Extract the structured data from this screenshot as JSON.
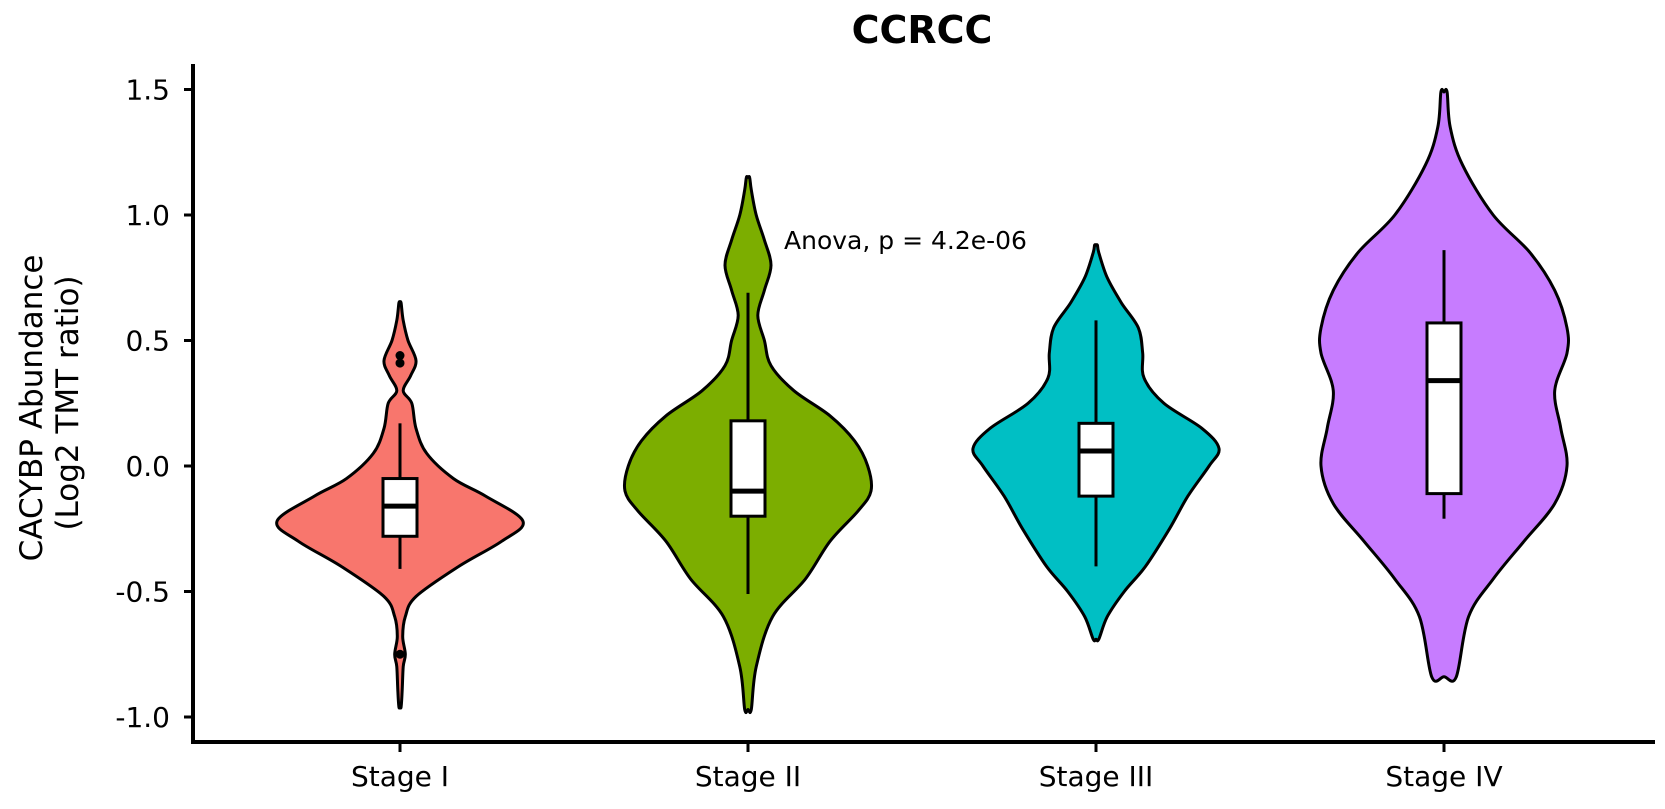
{
  "chart_data": {
    "type": "violin",
    "title": "CCRCC",
    "xlabel": "",
    "ylabel_lines": [
      "CACYBP Abundance",
      "(Log2 TMT ratio)"
    ],
    "ylim": [
      -1.1,
      1.6
    ],
    "yticks": [
      1.5,
      1.0,
      0.5,
      0.0,
      -0.5,
      -1.0
    ],
    "ytick_labels": [
      "1.5",
      "1.0",
      "0.5",
      "0.0",
      "-0.5",
      "-1.0"
    ],
    "annotation": "Anova, p = 4.2e-06",
    "grid": false,
    "legend": "none",
    "groups": [
      {
        "label": "Stage I",
        "color": "#F8766D",
        "box": {
          "q1": -0.28,
          "median": -0.16,
          "q3": -0.05,
          "whisker_low": -0.41,
          "whisker_high": 0.17
        },
        "outliers": [
          0.44,
          0.41,
          -0.75
        ],
        "density": [
          [
            -0.96,
            0.02
          ],
          [
            -0.9,
            0.04
          ],
          [
            -0.8,
            0.06
          ],
          [
            -0.75,
            0.1
          ],
          [
            -0.68,
            0.05
          ],
          [
            -0.6,
            0.1
          ],
          [
            -0.52,
            0.3
          ],
          [
            -0.4,
            1.1
          ],
          [
            -0.3,
            1.9
          ],
          [
            -0.22,
            2.3
          ],
          [
            -0.12,
            1.6
          ],
          [
            -0.05,
            1.0
          ],
          [
            0.05,
            0.5
          ],
          [
            0.15,
            0.3
          ],
          [
            0.25,
            0.22
          ],
          [
            0.3,
            0.06
          ],
          [
            0.36,
            0.2
          ],
          [
            0.42,
            0.3
          ],
          [
            0.5,
            0.15
          ],
          [
            0.58,
            0.06
          ],
          [
            0.65,
            0.02
          ]
        ]
      },
      {
        "label": "Stage II",
        "color": "#7CAE00",
        "box": {
          "q1": -0.2,
          "median": -0.1,
          "q3": 0.18,
          "whisker_low": -0.51,
          "whisker_high": 0.69
        },
        "outliers": [],
        "density": [
          [
            -0.97,
            0.02
          ],
          [
            -0.8,
            0.05
          ],
          [
            -0.6,
            0.15
          ],
          [
            -0.45,
            0.35
          ],
          [
            -0.3,
            0.5
          ],
          [
            -0.18,
            0.67
          ],
          [
            -0.1,
            0.75
          ],
          [
            0.0,
            0.73
          ],
          [
            0.1,
            0.65
          ],
          [
            0.2,
            0.5
          ],
          [
            0.3,
            0.28
          ],
          [
            0.4,
            0.14
          ],
          [
            0.5,
            0.1
          ],
          [
            0.6,
            0.06
          ],
          [
            0.7,
            0.1
          ],
          [
            0.8,
            0.14
          ],
          [
            0.9,
            0.1
          ],
          [
            1.0,
            0.05
          ],
          [
            1.1,
            0.02
          ],
          [
            1.15,
            0.01
          ]
        ]
      },
      {
        "label": "Stage III",
        "color": "#00BFC4",
        "box": {
          "q1": -0.12,
          "median": 0.06,
          "q3": 0.17,
          "whisker_low": -0.4,
          "whisker_high": 0.58
        },
        "outliers": [],
        "density": [
          [
            -0.69,
            0.02
          ],
          [
            -0.6,
            0.08
          ],
          [
            -0.5,
            0.2
          ],
          [
            -0.4,
            0.35
          ],
          [
            -0.25,
            0.52
          ],
          [
            -0.12,
            0.65
          ],
          [
            0.0,
            0.8
          ],
          [
            0.07,
            0.87
          ],
          [
            0.15,
            0.75
          ],
          [
            0.25,
            0.48
          ],
          [
            0.35,
            0.34
          ],
          [
            0.45,
            0.33
          ],
          [
            0.55,
            0.3
          ],
          [
            0.65,
            0.18
          ],
          [
            0.75,
            0.08
          ],
          [
            0.85,
            0.02
          ],
          [
            0.88,
            0.01
          ]
        ]
      },
      {
        "label": "Stage IV",
        "color": "#C77CFF",
        "box": {
          "q1": -0.11,
          "median": 0.34,
          "q3": 0.57,
          "whisker_low": -0.21,
          "whisker_high": 0.86
        },
        "outliers": [],
        "density": [
          [
            -0.84,
            0.02
          ],
          [
            -0.6,
            0.04
          ],
          [
            -0.45,
            0.08
          ],
          [
            -0.3,
            0.13
          ],
          [
            -0.15,
            0.18
          ],
          [
            0.0,
            0.2
          ],
          [
            0.15,
            0.19
          ],
          [
            0.3,
            0.18
          ],
          [
            0.45,
            0.2
          ],
          [
            0.55,
            0.2
          ],
          [
            0.7,
            0.18
          ],
          [
            0.85,
            0.14
          ],
          [
            1.0,
            0.08
          ],
          [
            1.2,
            0.03
          ],
          [
            1.35,
            0.01
          ],
          [
            1.49,
            0.005
          ]
        ]
      }
    ]
  }
}
